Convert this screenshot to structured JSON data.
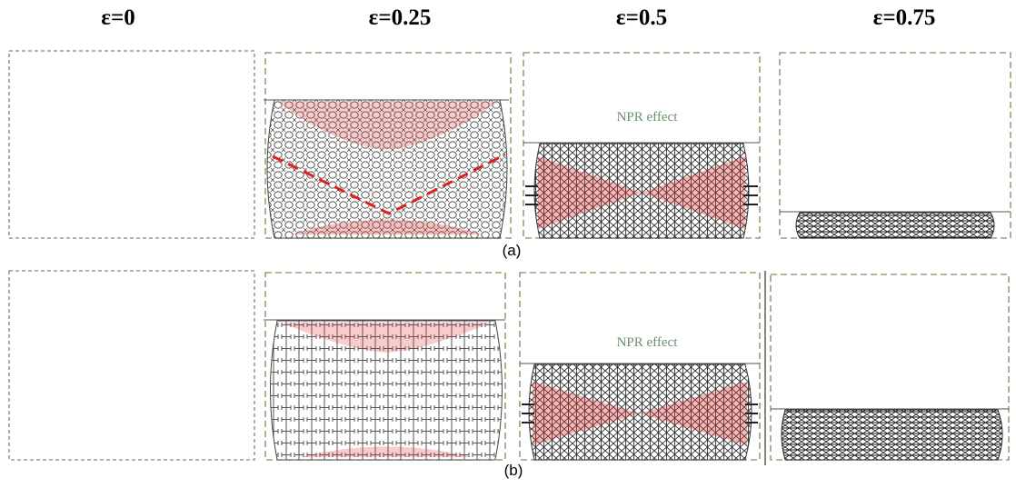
{
  "header": {
    "columns": [
      "ε=0",
      "ε=0.25",
      "ε=0.5",
      "ε=0.75"
    ]
  },
  "rows": [
    {
      "label": "(a)",
      "annotation": "NPR effect"
    },
    {
      "label": "(b)",
      "annotation": "NPR effect"
    }
  ]
}
